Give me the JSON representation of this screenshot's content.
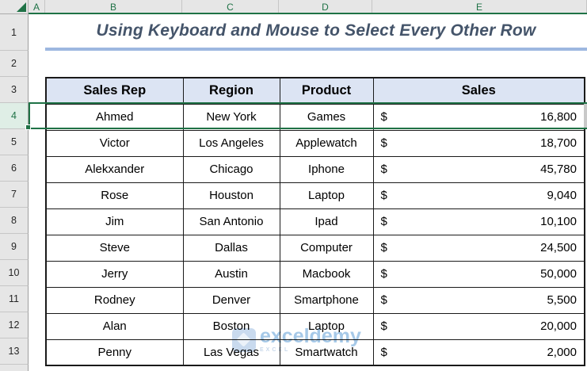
{
  "sheet": {
    "column_letters": [
      "A",
      "B",
      "C",
      "D",
      "E"
    ],
    "row_numbers": [
      "1",
      "2",
      "3",
      "4",
      "5",
      "6",
      "7",
      "8",
      "9",
      "10",
      "11",
      "12",
      "13"
    ],
    "selected_row_number": "4"
  },
  "title": {
    "text": "Using Keyboard and Mouse to Select Every Other Row"
  },
  "table": {
    "headers": {
      "sales_rep": "Sales Rep",
      "region": "Region",
      "product": "Product",
      "sales": "Sales"
    },
    "rows": [
      {
        "row": "4",
        "sales_rep": "Ahmed",
        "region": "New York",
        "product": "Games",
        "currency": "$",
        "sales": "16,800",
        "selected": true
      },
      {
        "row": "5",
        "sales_rep": "Victor",
        "region": "Los Angeles",
        "product": "Applewatch",
        "currency": "$",
        "sales": "18,700",
        "selected": false
      },
      {
        "row": "6",
        "sales_rep": "Alekxander",
        "region": "Chicago",
        "product": "Iphone",
        "currency": "$",
        "sales": "45,780",
        "selected": false
      },
      {
        "row": "7",
        "sales_rep": "Rose",
        "region": "Houston",
        "product": "Laptop",
        "currency": "$",
        "sales": "9,040",
        "selected": false
      },
      {
        "row": "8",
        "sales_rep": "Jim",
        "region": "San Antonio",
        "product": "Ipad",
        "currency": "$",
        "sales": "10,100",
        "selected": false
      },
      {
        "row": "9",
        "sales_rep": "Steve",
        "region": "Dallas",
        "product": "Computer",
        "currency": "$",
        "sales": "24,500",
        "selected": false
      },
      {
        "row": "10",
        "sales_rep": "Jerry",
        "region": "Austin",
        "product": "Macbook",
        "currency": "$",
        "sales": "50,000",
        "selected": false
      },
      {
        "row": "11",
        "sales_rep": "Rodney",
        "region": "Denver",
        "product": "Smartphone",
        "currency": "$",
        "sales": "5,500",
        "selected": false
      },
      {
        "row": "12",
        "sales_rep": "Alan",
        "region": "Boston",
        "product": "Laptop",
        "currency": "$",
        "sales": "20,000",
        "selected": false
      },
      {
        "row": "13",
        "sales_rep": "Penny",
        "region": "Las Vegas",
        "product": "Smartwatch",
        "currency": "$",
        "sales": "2,000",
        "selected": false
      }
    ]
  },
  "watermark": {
    "brand": "exceldemy",
    "subtext": "EXCEL"
  },
  "colors": {
    "accent_green": "#1F7246",
    "selection_fill": "#C9C9C9",
    "table_header_fill": "#DCE4F3",
    "title_text": "#44546A",
    "title_underline": "#9DB7E0",
    "watermark_blue": "#9CC3E6",
    "grid_header_fill": "#E6E6E6"
  }
}
